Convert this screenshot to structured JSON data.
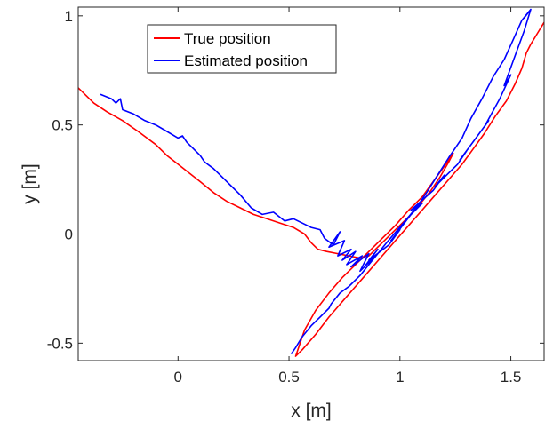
{
  "chart_data": {
    "type": "line",
    "title": "",
    "xlabel": "x [m]",
    "ylabel": "y [m]",
    "xlim": [
      -0.45,
      1.65
    ],
    "ylim": [
      -0.58,
      1.04
    ],
    "xticks": [
      0,
      0.5,
      1,
      1.5
    ],
    "xtick_labels": [
      "0",
      "0.5",
      "1",
      "1.5"
    ],
    "yticks": [
      -0.5,
      0,
      0.5,
      1
    ],
    "ytick_labels": [
      "-0.5",
      "0",
      "0.5",
      "1"
    ],
    "grid": false,
    "legend_position": "top-left",
    "series": [
      {
        "name": "True position",
        "color": "#ff0000",
        "x": [
          -0.45,
          -0.38,
          -0.32,
          -0.25,
          -0.18,
          -0.1,
          -0.05,
          0.0,
          0.05,
          0.1,
          0.16,
          0.22,
          0.28,
          0.34,
          0.4,
          0.46,
          0.52,
          0.57,
          0.6,
          0.63,
          0.67,
          0.72,
          0.77,
          0.82,
          0.86,
          0.9,
          0.94,
          0.98,
          1.02,
          1.06,
          1.1,
          1.14,
          1.18,
          1.22,
          1.24,
          1.2,
          1.15,
          1.1,
          1.04,
          0.98,
          0.92,
          0.86,
          0.8,
          0.74,
          0.68,
          0.62,
          0.57,
          0.53,
          0.56,
          0.62,
          0.68,
          0.74,
          0.8,
          0.86,
          0.92,
          0.98,
          1.04,
          1.1,
          1.16,
          1.22,
          1.28,
          1.33,
          1.38,
          1.43,
          1.48,
          1.52,
          1.55,
          1.57,
          1.59,
          1.62,
          1.65
        ],
        "y": [
          0.67,
          0.6,
          0.56,
          0.52,
          0.47,
          0.41,
          0.36,
          0.32,
          0.28,
          0.24,
          0.19,
          0.15,
          0.12,
          0.09,
          0.07,
          0.05,
          0.03,
          0.0,
          -0.04,
          -0.07,
          -0.08,
          -0.09,
          -0.1,
          -0.11,
          -0.1,
          -0.06,
          -0.02,
          0.02,
          0.06,
          0.1,
          0.15,
          0.2,
          0.26,
          0.33,
          0.37,
          0.31,
          0.24,
          0.17,
          0.11,
          0.04,
          -0.02,
          -0.08,
          -0.14,
          -0.2,
          -0.27,
          -0.35,
          -0.44,
          -0.56,
          -0.53,
          -0.46,
          -0.38,
          -0.31,
          -0.24,
          -0.17,
          -0.1,
          -0.03,
          0.04,
          0.11,
          0.18,
          0.25,
          0.32,
          0.39,
          0.46,
          0.54,
          0.61,
          0.69,
          0.76,
          0.83,
          0.87,
          0.92,
          0.97
        ]
      },
      {
        "name": "Estimated position",
        "color": "#0000ff",
        "x": [
          -0.35,
          -0.3,
          -0.28,
          -0.26,
          -0.25,
          -0.2,
          -0.15,
          -0.1,
          -0.05,
          0.0,
          0.02,
          0.04,
          0.06,
          0.1,
          0.12,
          0.16,
          0.2,
          0.24,
          0.28,
          0.33,
          0.38,
          0.43,
          0.48,
          0.52,
          0.56,
          0.6,
          0.64,
          0.66,
          0.7,
          0.73,
          0.68,
          0.75,
          0.72,
          0.78,
          0.74,
          0.8,
          0.76,
          0.83,
          0.78,
          0.86,
          0.82,
          0.88,
          0.84,
          0.9,
          0.86,
          0.95,
          1.0,
          0.96,
          1.05,
          1.1,
          1.05,
          1.15,
          1.2,
          1.16,
          1.26,
          1.3,
          1.27,
          1.35,
          1.4,
          1.38,
          1.45,
          1.5,
          1.47,
          1.52,
          1.56,
          1.59,
          1.56,
          1.59,
          1.55,
          1.51,
          1.47,
          1.42,
          1.37,
          1.32,
          1.28,
          1.22,
          1.17,
          1.12,
          1.08,
          1.04,
          0.99,
          0.94,
          0.9,
          0.86,
          0.82,
          0.77,
          0.73,
          0.69,
          0.68,
          0.64,
          0.6,
          0.56,
          0.53,
          0.51
        ],
        "y": [
          0.64,
          0.62,
          0.6,
          0.62,
          0.57,
          0.55,
          0.52,
          0.5,
          0.47,
          0.44,
          0.45,
          0.42,
          0.4,
          0.36,
          0.33,
          0.3,
          0.26,
          0.22,
          0.18,
          0.12,
          0.09,
          0.1,
          0.06,
          0.07,
          0.05,
          0.03,
          0.02,
          -0.02,
          -0.05,
          0.01,
          -0.06,
          -0.03,
          -0.1,
          -0.07,
          -0.12,
          -0.08,
          -0.14,
          -0.1,
          -0.15,
          -0.09,
          -0.17,
          -0.11,
          -0.15,
          -0.07,
          -0.12,
          -0.05,
          0.02,
          -0.03,
          0.09,
          0.14,
          0.11,
          0.2,
          0.27,
          0.22,
          0.32,
          0.38,
          0.34,
          0.45,
          0.52,
          0.49,
          0.62,
          0.73,
          0.68,
          0.82,
          0.93,
          1.03,
          0.99,
          1.03,
          0.98,
          0.89,
          0.8,
          0.72,
          0.62,
          0.53,
          0.44,
          0.35,
          0.27,
          0.19,
          0.13,
          0.08,
          0.02,
          -0.04,
          -0.09,
          -0.14,
          -0.19,
          -0.24,
          -0.27,
          -0.32,
          -0.34,
          -0.38,
          -0.42,
          -0.47,
          -0.52,
          -0.55
        ]
      }
    ]
  }
}
